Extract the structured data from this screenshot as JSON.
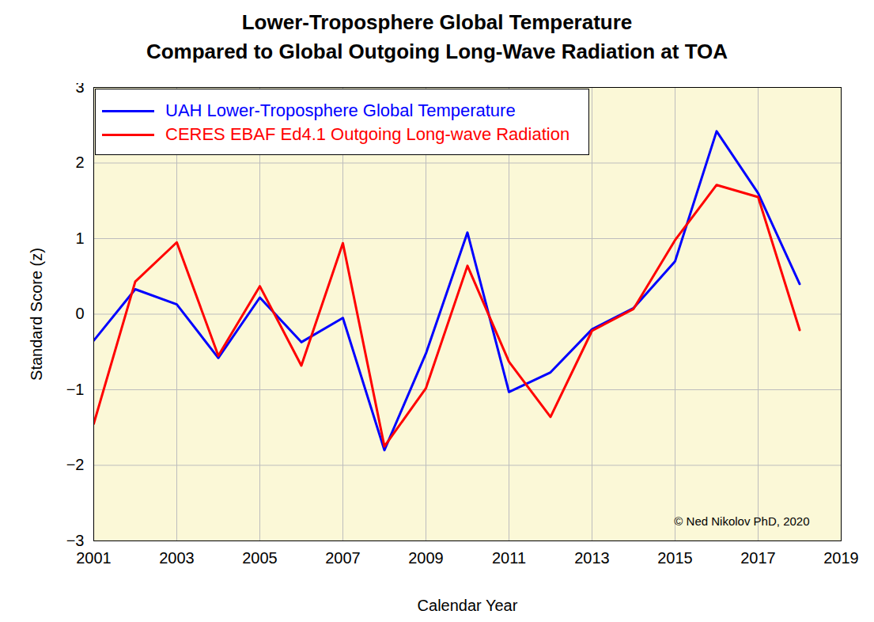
{
  "chart_data": {
    "type": "line",
    "title": [
      "Lower-Troposphere Global Temperature",
      "Compared to Global Outgoing Long-Wave Radiation at TOA"
    ],
    "x_label": "Calendar Year",
    "y_label": "Standard Score (z)",
    "annotation": "© Ned Nikolov PhD, 2020",
    "x": [
      2001,
      2002,
      2003,
      2004,
      2005,
      2006,
      2007,
      2008,
      2009,
      2010,
      2011,
      2012,
      2013,
      2014,
      2015,
      2016,
      2017,
      2018
    ],
    "series": [
      {
        "name": "UAH Lower-Troposphere Global Temperature",
        "color": "#0000ff",
        "values": [
          -0.35,
          0.33,
          0.13,
          -0.58,
          0.22,
          -0.37,
          -0.05,
          -1.8,
          -0.52,
          1.08,
          -1.03,
          -0.77,
          -0.2,
          0.08,
          0.7,
          2.42,
          1.6,
          0.4
        ]
      },
      {
        "name": "CERES EBAF Ed4.1 Outgoing Long-wave Radiation",
        "color": "#ff0000",
        "values": [
          -1.45,
          0.43,
          0.95,
          -0.55,
          0.37,
          -0.68,
          0.94,
          -1.75,
          -0.98,
          0.64,
          -0.63,
          -1.36,
          -0.22,
          0.07,
          0.98,
          1.71,
          1.55,
          -0.21
        ]
      }
    ],
    "xlim": [
      2001,
      2019
    ],
    "xticks": [
      2001,
      2003,
      2005,
      2007,
      2009,
      2011,
      2013,
      2015,
      2017,
      2019
    ],
    "ylim": [
      -3,
      3
    ],
    "yticks": [
      -3,
      -2,
      -1,
      0,
      1,
      2,
      3
    ],
    "grid": true,
    "legend": "top-left"
  }
}
